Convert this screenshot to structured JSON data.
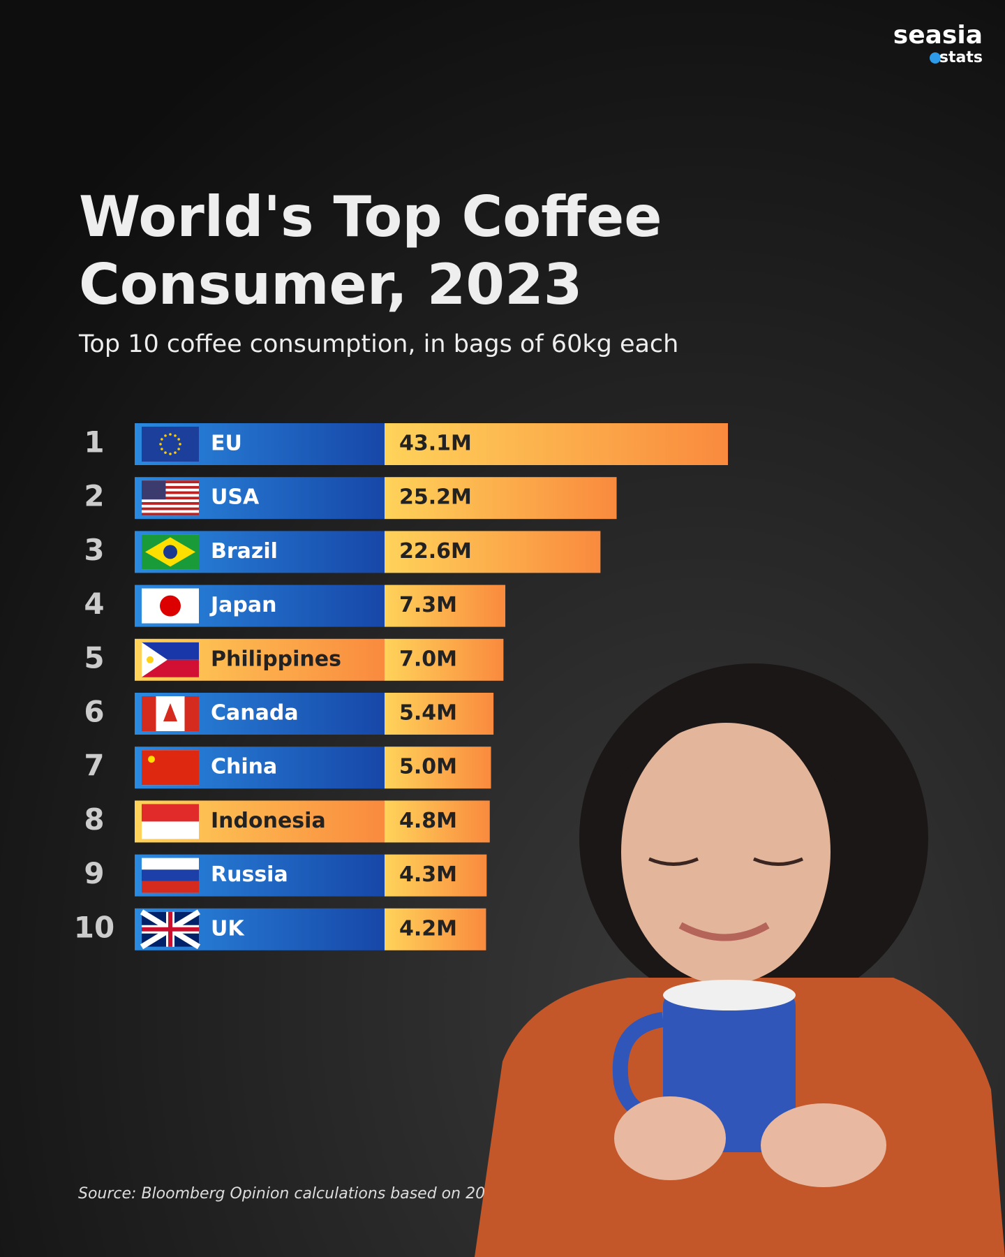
{
  "brand": {
    "name": "seasia",
    "tag": "stats"
  },
  "chart_data": {
    "type": "bar",
    "orientation": "horizontal",
    "title_lines": [
      "World's Top Coffee",
      "Consumer, 2023"
    ],
    "subtitle": "Top 10 coffee consumption, in bags of 60kg each",
    "ranks": [
      1,
      2,
      3,
      4,
      5,
      6,
      7,
      8,
      9,
      10
    ],
    "categories": [
      "EU",
      "USA",
      "Brazil",
      "Japan",
      "Philippines",
      "Canada",
      "China",
      "Indonesia",
      "Russia",
      "UK"
    ],
    "values": [
      43.1,
      25.2,
      22.6,
      7.3,
      7.0,
      5.4,
      5.0,
      4.8,
      4.3,
      4.2
    ],
    "value_labels": [
      "43.1M",
      "25.2M",
      "22.6M",
      "7.3M",
      "7.0M",
      "5.4M",
      "5.0M",
      "4.8M",
      "4.3M",
      "4.2M"
    ],
    "color": "#f7a54a",
    "label_color": "#1f63c6",
    "highlighted": [
      false,
      false,
      false,
      false,
      true,
      false,
      false,
      true,
      false,
      false
    ],
    "source": "Source: Bloomberg Opinion calculations based on 20"
  }
}
